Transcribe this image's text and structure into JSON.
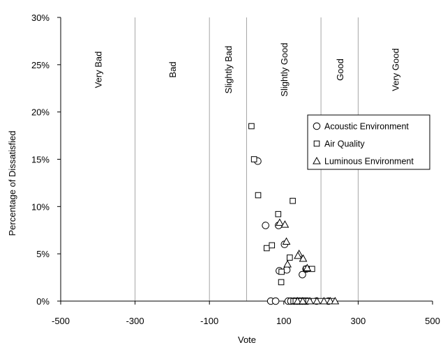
{
  "chart_data": {
    "type": "scatter",
    "title": "",
    "xlabel": "Vote",
    "ylabel": "Percentage of Dissatisfied",
    "xlim": [
      -500,
      500
    ],
    "ylim": [
      0,
      0.3
    ],
    "x_ticks": [
      "-500",
      "-300",
      "-100",
      "100",
      "300",
      "500"
    ],
    "x_tick_values": [
      -500,
      -300,
      -100,
      100,
      300,
      500
    ],
    "y_ticks": [
      "0%",
      "5%",
      "10%",
      "15%",
      "20%",
      "25%",
      "30%"
    ],
    "y_tick_values": [
      0,
      0.05,
      0.1,
      0.15,
      0.2,
      0.25,
      0.3
    ],
    "grid": "vertical category separators",
    "categories": [
      "Very Bad",
      "Bad",
      "Slightly Bad",
      "Slightly Good",
      "Good",
      "Very Good"
    ],
    "category_boundaries": [
      -500,
      -300,
      -100,
      0,
      200,
      300,
      500
    ],
    "legend_position": "right",
    "series": [
      {
        "name": "Acoustic Environment",
        "marker": "circle",
        "points": [
          [
            30,
            0.148
          ],
          [
            51,
            0.08
          ],
          [
            86,
            0.08
          ],
          [
            102,
            0.06
          ],
          [
            88,
            0.032
          ],
          [
            108,
            0.033
          ],
          [
            160,
            0.034
          ],
          [
            150,
            0.028
          ],
          [
            65,
            0.0
          ],
          [
            78,
            0.0
          ],
          [
            112,
            0.0
          ],
          [
            119,
            0.0
          ],
          [
            128,
            0.0
          ],
          [
            136,
            0.0
          ],
          [
            143,
            0.0
          ],
          [
            150,
            0.0
          ],
          [
            157,
            0.0
          ],
          [
            163,
            0.0
          ],
          [
            188,
            0.0
          ],
          [
            220,
            0.0
          ]
        ]
      },
      {
        "name": "Air Quality",
        "marker": "square",
        "points": [
          [
            13,
            0.185
          ],
          [
            20,
            0.15
          ],
          [
            31,
            0.112
          ],
          [
            124,
            0.106
          ],
          [
            85,
            0.092
          ],
          [
            54,
            0.056
          ],
          [
            68,
            0.059
          ],
          [
            116,
            0.046
          ],
          [
            160,
            0.034
          ],
          [
            176,
            0.034
          ],
          [
            94,
            0.031
          ],
          [
            93,
            0.02
          ],
          [
            126,
            0.0
          ],
          [
            132,
            0.0
          ],
          [
            141,
            0.0
          ],
          [
            147,
            0.0
          ],
          [
            156,
            0.0
          ],
          [
            166,
            0.0
          ],
          [
            181,
            0.0
          ],
          [
            199,
            0.0
          ],
          [
            217,
            0.0
          ],
          [
            229,
            0.0
          ]
        ]
      },
      {
        "name": "Luminous Environment",
        "marker": "triangle",
        "points": [
          [
            89,
            0.083
          ],
          [
            103,
            0.081
          ],
          [
            107,
            0.063
          ],
          [
            141,
            0.05
          ],
          [
            138,
            0.048
          ],
          [
            152,
            0.045
          ],
          [
            110,
            0.039
          ],
          [
            163,
            0.035
          ],
          [
            137,
            0.0
          ],
          [
            151,
            0.0
          ],
          [
            170,
            0.0
          ],
          [
            189,
            0.0
          ],
          [
            208,
            0.0
          ],
          [
            225,
            0.0
          ],
          [
            238,
            0.0
          ]
        ]
      }
    ]
  }
}
